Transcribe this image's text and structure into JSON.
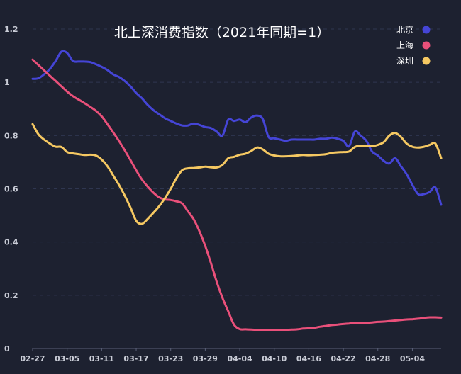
{
  "chart_data": {
    "type": "line",
    "title": "北上深消费指数（2021年同期=1）",
    "xlabel": "",
    "ylabel": "",
    "ylim": [
      0,
      1.2
    ],
    "yticks": [
      "0",
      "0.2",
      "0.4",
      "0.6",
      "0.8",
      "1",
      "1.2"
    ],
    "ytick_values": [
      0,
      0.2,
      0.4,
      0.6,
      0.8,
      1.0,
      1.2
    ],
    "x": [
      "02-27",
      "02-28",
      "03-01",
      "03-02",
      "03-03",
      "03-04",
      "03-05",
      "03-06",
      "03-07",
      "03-08",
      "03-09",
      "03-10",
      "03-11",
      "03-12",
      "03-13",
      "03-14",
      "03-15",
      "03-16",
      "03-17",
      "03-18",
      "03-19",
      "03-20",
      "03-21",
      "03-22",
      "03-23",
      "03-24",
      "03-25",
      "03-26",
      "03-27",
      "03-28",
      "03-29",
      "03-30",
      "03-31",
      "04-01",
      "04-02",
      "04-03",
      "04-04",
      "04-05",
      "04-06",
      "04-07",
      "04-08",
      "04-09",
      "04-10",
      "04-11",
      "04-12",
      "04-13",
      "04-14",
      "04-15",
      "04-16",
      "04-17",
      "04-18",
      "04-19",
      "04-20",
      "04-21",
      "04-22",
      "04-23",
      "04-24",
      "04-25",
      "04-26",
      "04-27",
      "04-28",
      "04-29",
      "04-30",
      "05-01",
      "05-02",
      "05-03",
      "05-04",
      "05-05",
      "05-06",
      "05-07",
      "05-08",
      "05-09"
    ],
    "xtick_labels": [
      "02-27",
      "03-05",
      "03-11",
      "03-17",
      "03-23",
      "03-29",
      "04-04",
      "04-10",
      "04-16",
      "04-22",
      "04-28",
      "05-04"
    ],
    "grid": true,
    "legend_position": "top-right",
    "series": [
      {
        "name": "北京",
        "color": "#4545d6",
        "values": [
          1.013,
          1.015,
          1.03,
          1.05,
          1.08,
          1.115,
          1.11,
          1.08,
          1.078,
          1.078,
          1.076,
          1.068,
          1.058,
          1.046,
          1.03,
          1.02,
          1.005,
          0.985,
          0.96,
          0.94,
          0.915,
          0.895,
          0.88,
          0.865,
          0.855,
          0.845,
          0.838,
          0.838,
          0.845,
          0.84,
          0.832,
          0.828,
          0.815,
          0.8,
          0.86,
          0.855,
          0.86,
          0.85,
          0.868,
          0.875,
          0.862,
          0.795,
          0.79,
          0.785,
          0.78,
          0.785,
          0.785,
          0.785,
          0.785,
          0.785,
          0.788,
          0.788,
          0.792,
          0.788,
          0.78,
          0.76,
          0.815,
          0.8,
          0.78,
          0.74,
          0.725,
          0.705,
          0.695,
          0.715,
          0.685,
          0.655,
          0.615,
          0.58,
          0.58,
          0.588,
          0.605,
          0.54
        ]
      },
      {
        "name": "上海",
        "color": "#e9507a",
        "values": [
          1.085,
          1.065,
          1.045,
          1.025,
          1.005,
          0.985,
          0.965,
          0.948,
          0.935,
          0.922,
          0.908,
          0.893,
          0.872,
          0.843,
          0.812,
          0.78,
          0.745,
          0.708,
          0.67,
          0.635,
          0.608,
          0.585,
          0.568,
          0.56,
          0.558,
          0.553,
          0.545,
          0.515,
          0.485,
          0.44,
          0.385,
          0.32,
          0.25,
          0.19,
          0.14,
          0.09,
          0.073,
          0.072,
          0.071,
          0.07,
          0.07,
          0.07,
          0.07,
          0.07,
          0.07,
          0.071,
          0.072,
          0.075,
          0.076,
          0.078,
          0.082,
          0.085,
          0.088,
          0.09,
          0.092,
          0.094,
          0.096,
          0.097,
          0.097,
          0.098,
          0.1,
          0.101,
          0.103,
          0.105,
          0.107,
          0.109,
          0.11,
          0.112,
          0.115,
          0.117,
          0.117,
          0.116
        ]
      },
      {
        "name": "深圳",
        "color": "#f5c862",
        "values": [
          0.843,
          0.805,
          0.785,
          0.77,
          0.758,
          0.757,
          0.738,
          0.733,
          0.73,
          0.727,
          0.728,
          0.725,
          0.71,
          0.685,
          0.65,
          0.615,
          0.575,
          0.53,
          0.48,
          0.468,
          0.487,
          0.51,
          0.535,
          0.565,
          0.6,
          0.64,
          0.67,
          0.677,
          0.678,
          0.68,
          0.683,
          0.681,
          0.68,
          0.69,
          0.715,
          0.72,
          0.728,
          0.732,
          0.742,
          0.755,
          0.748,
          0.732,
          0.725,
          0.722,
          0.722,
          0.723,
          0.725,
          0.727,
          0.726,
          0.727,
          0.728,
          0.73,
          0.735,
          0.737,
          0.738,
          0.74,
          0.757,
          0.762,
          0.762,
          0.76,
          0.765,
          0.775,
          0.8,
          0.81,
          0.795,
          0.77,
          0.758,
          0.755,
          0.758,
          0.765,
          0.77,
          0.715
        ]
      }
    ]
  },
  "style": {
    "background": "#1d2130",
    "grid_color": "#2f3650",
    "axis_color": "#5a6078"
  }
}
